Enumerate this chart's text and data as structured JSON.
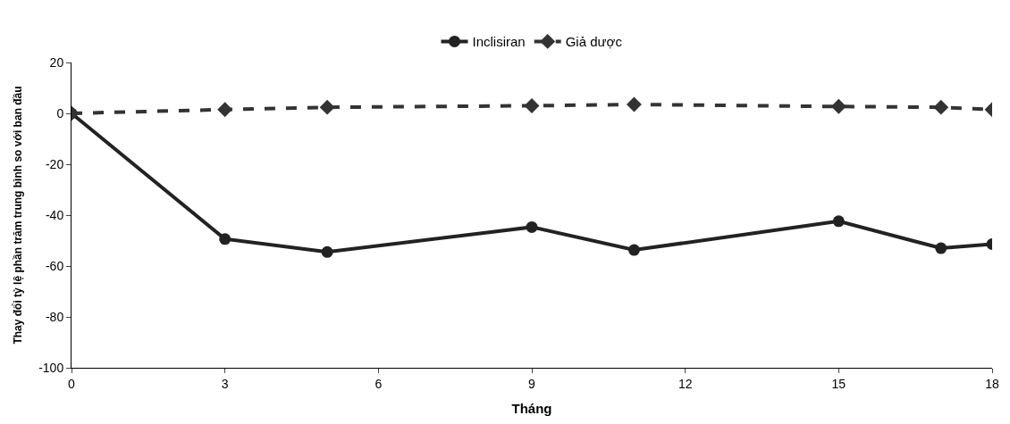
{
  "chart_data": {
    "type": "line",
    "xlabel": "Tháng",
    "ylabel": "Thay đổi tỷ lệ phần trăm trung bình so với ban đầu",
    "x": [
      0,
      3,
      5,
      9,
      11,
      15,
      17,
      18
    ],
    "series": [
      {
        "name": "Inclisiran",
        "color": "#222222",
        "values": [
          0,
          -49.4,
          -54.5,
          -44.7,
          -53.7,
          -42.4,
          -53,
          -51.4
        ],
        "marker": "circle",
        "line_style": "solid"
      },
      {
        "name": "Giả dược",
        "color": "#333333",
        "values": [
          0,
          1.5,
          2.4,
          3,
          3.5,
          2.7,
          2.4,
          1.5
        ],
        "marker": "diamond",
        "line_style": "dashed"
      }
    ],
    "xlim": [
      0,
      18
    ],
    "xticks": [
      0,
      3,
      6,
      9,
      12,
      15,
      18
    ],
    "ylim": [
      -100,
      20
    ],
    "yticks": [
      -100,
      -80,
      -60,
      -40,
      -20,
      0,
      20
    ],
    "legend": "top"
  }
}
